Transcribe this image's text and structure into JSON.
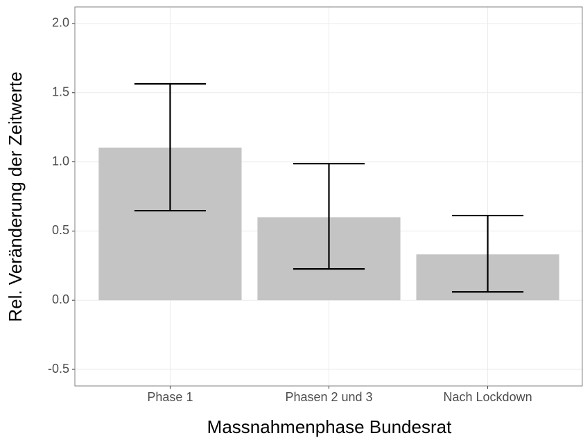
{
  "chart_data": {
    "type": "bar",
    "x_label": "Massnahmenphase Bundesrat",
    "y_label": "Rel. Veränderung der Zeitwerte",
    "categories": [
      "Phase 1",
      "Phasen 2 und 3",
      "Nach Lockdown"
    ],
    "values": [
      1.103,
      0.6,
      0.331
    ],
    "lower": [
      0.647,
      0.226,
      0.06
    ],
    "upper": [
      1.564,
      0.987,
      0.612
    ],
    "color": "#c4c4c4",
    "error_color": "#000000",
    "ylim": [
      -0.62,
      2.12
    ],
    "yticks": [
      -0.5,
      0.0,
      0.5,
      1.0,
      1.5,
      2.0
    ],
    "grid": true
  }
}
